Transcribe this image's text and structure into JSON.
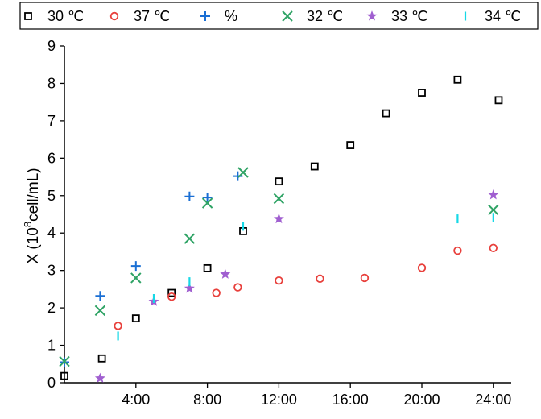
{
  "chart_data": {
    "type": "scatter",
    "title": "",
    "xlabel": "",
    "ylabel_main": "X (10",
    "ylabel_sup": "8",
    "ylabel_rest": "cell/mL)",
    "xlim": [
      0,
      25
    ],
    "ylim": [
      0,
      9
    ],
    "x_ticks": [
      4,
      8,
      12,
      16,
      20,
      24
    ],
    "x_tick_labels": [
      "4:00",
      "8:00",
      "12:00",
      "16:00",
      "20:00",
      "24:00"
    ],
    "y_ticks": [
      0,
      1,
      2,
      3,
      4,
      5,
      6,
      7,
      8,
      9
    ],
    "y_tick_labels": [
      "0",
      "1",
      "2",
      "3",
      "4",
      "5",
      "6",
      "7",
      "8",
      "9"
    ],
    "legend_position": "top",
    "series": [
      {
        "name": "30 ℃",
        "marker": "square",
        "color": "#000000",
        "x": [
          0,
          2.1,
          4,
          6,
          8,
          10,
          12,
          14,
          16,
          18,
          20,
          22,
          24.3
        ],
        "y": [
          0.18,
          0.65,
          1.72,
          2.4,
          3.06,
          4.05,
          5.38,
          5.78,
          6.35,
          7.2,
          7.75,
          8.1,
          7.55
        ]
      },
      {
        "name": "37 ℃",
        "marker": "circle",
        "color": "#e8403c",
        "x": [
          3,
          6,
          8.5,
          9.7,
          12,
          14.3,
          16.8,
          20,
          22,
          24
        ],
        "y": [
          1.52,
          2.3,
          2.4,
          2.55,
          2.73,
          2.78,
          2.8,
          3.07,
          3.53,
          3.6
        ]
      },
      {
        "name": "%",
        "marker": "plus",
        "color": "#1a6fd4",
        "x": [
          0,
          2,
          4,
          7,
          8,
          9.7
        ],
        "y": [
          0.55,
          2.32,
          3.12,
          4.98,
          4.95,
          5.52
        ]
      },
      {
        "name": "32 ℃",
        "marker": "x",
        "color": "#2fa365",
        "x": [
          0,
          2,
          4,
          7,
          8,
          10,
          12,
          24
        ],
        "y": [
          0.57,
          1.93,
          2.8,
          3.85,
          4.8,
          5.62,
          4.92,
          4.62
        ]
      },
      {
        "name": "33 ℃",
        "marker": "star",
        "color": "#a05fd0",
        "x": [
          2,
          5,
          7,
          9,
          12,
          24
        ],
        "y": [
          0.12,
          2.17,
          2.52,
          2.9,
          4.38,
          5.02
        ]
      },
      {
        "name": "34 ℃",
        "marker": "vbar",
        "color": "#16d8e6",
        "x": [
          3,
          5,
          7,
          10,
          22,
          24
        ],
        "y": [
          1.25,
          2.25,
          2.7,
          4.18,
          4.38,
          4.42
        ]
      }
    ]
  }
}
